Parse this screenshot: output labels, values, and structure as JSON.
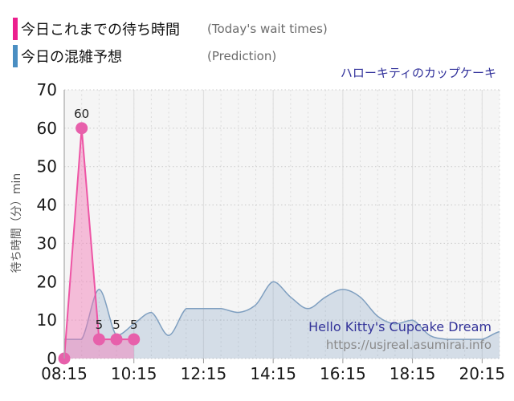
{
  "title": "ハローキティのカップケーキ",
  "y_axis_label": "待ち時間（分）min",
  "legend": {
    "today": {
      "label_jp": "今日これまでの待ち時間",
      "label_en": "(Today's wait times)",
      "color": "#ec1f8e"
    },
    "prediction": {
      "label_jp": "今日の混雑予想",
      "label_en": "(Prediction)",
      "color": "#4a8ec2"
    }
  },
  "annotations": {
    "attraction_name_en": "Hello Kitty's Cupcake Dream",
    "url": "https://usjreal.asumirai.info"
  },
  "colors": {
    "today_line": "#ee55a5",
    "today_fill": "rgba(243,120,181,0.45)",
    "today_marker": "#e760ab",
    "prediction_line": "#7f9fc0",
    "prediction_fill": "rgba(110,145,190,0.24)",
    "title_text": "#30309a",
    "plot_background": "#f5f5f5"
  },
  "chart_data": {
    "type": "line",
    "title": "ハローキティのカップケーキ",
    "xlabel": "",
    "ylabel": "待ち時間（分）min",
    "ylim": [
      0,
      70
    ],
    "xlim_hours": [
      8.25,
      20.75
    ],
    "y_ticks": [
      "0",
      "10",
      "20",
      "30",
      "40",
      "50",
      "60",
      "70"
    ],
    "x_ticks": [
      "08:15",
      "10:15",
      "12:15",
      "14:15",
      "16:15",
      "18:15",
      "20:15"
    ],
    "x_minor_step_minutes": 30,
    "grid": true,
    "legend_position": "top-left",
    "series": [
      {
        "name": "今日の混雑予想",
        "role": "prediction",
        "smooth": true,
        "markers": false,
        "color": "#7f9fc0",
        "fill": "rgba(110,145,190,0.24)",
        "x": [
          "08:15",
          "08:45",
          "09:15",
          "09:45",
          "10:15",
          "10:45",
          "11:15",
          "11:45",
          "12:15",
          "12:45",
          "13:15",
          "13:45",
          "14:15",
          "14:45",
          "15:15",
          "15:45",
          "16:15",
          "16:45",
          "17:15",
          "17:45",
          "18:15",
          "18:45",
          "19:15",
          "19:45",
          "20:15",
          "20:45"
        ],
        "y": [
          5,
          5,
          18,
          6,
          9,
          12,
          6,
          13,
          13,
          13,
          12,
          14,
          20,
          16,
          13,
          16,
          18,
          16,
          11,
          9,
          10,
          6,
          5,
          5,
          5,
          7
        ]
      },
      {
        "name": "今日これまでの待ち時間",
        "role": "today",
        "smooth": false,
        "markers": true,
        "color": "#ee55a5",
        "fill": "rgba(243,120,181,0.45)",
        "marker_color": "#e760ab",
        "x": [
          "08:15",
          "08:45",
          "09:15",
          "09:45",
          "10:15"
        ],
        "y": [
          0,
          60,
          5,
          5,
          5
        ],
        "point_labels": [
          "",
          "60",
          "5",
          "5",
          "5"
        ]
      }
    ]
  }
}
